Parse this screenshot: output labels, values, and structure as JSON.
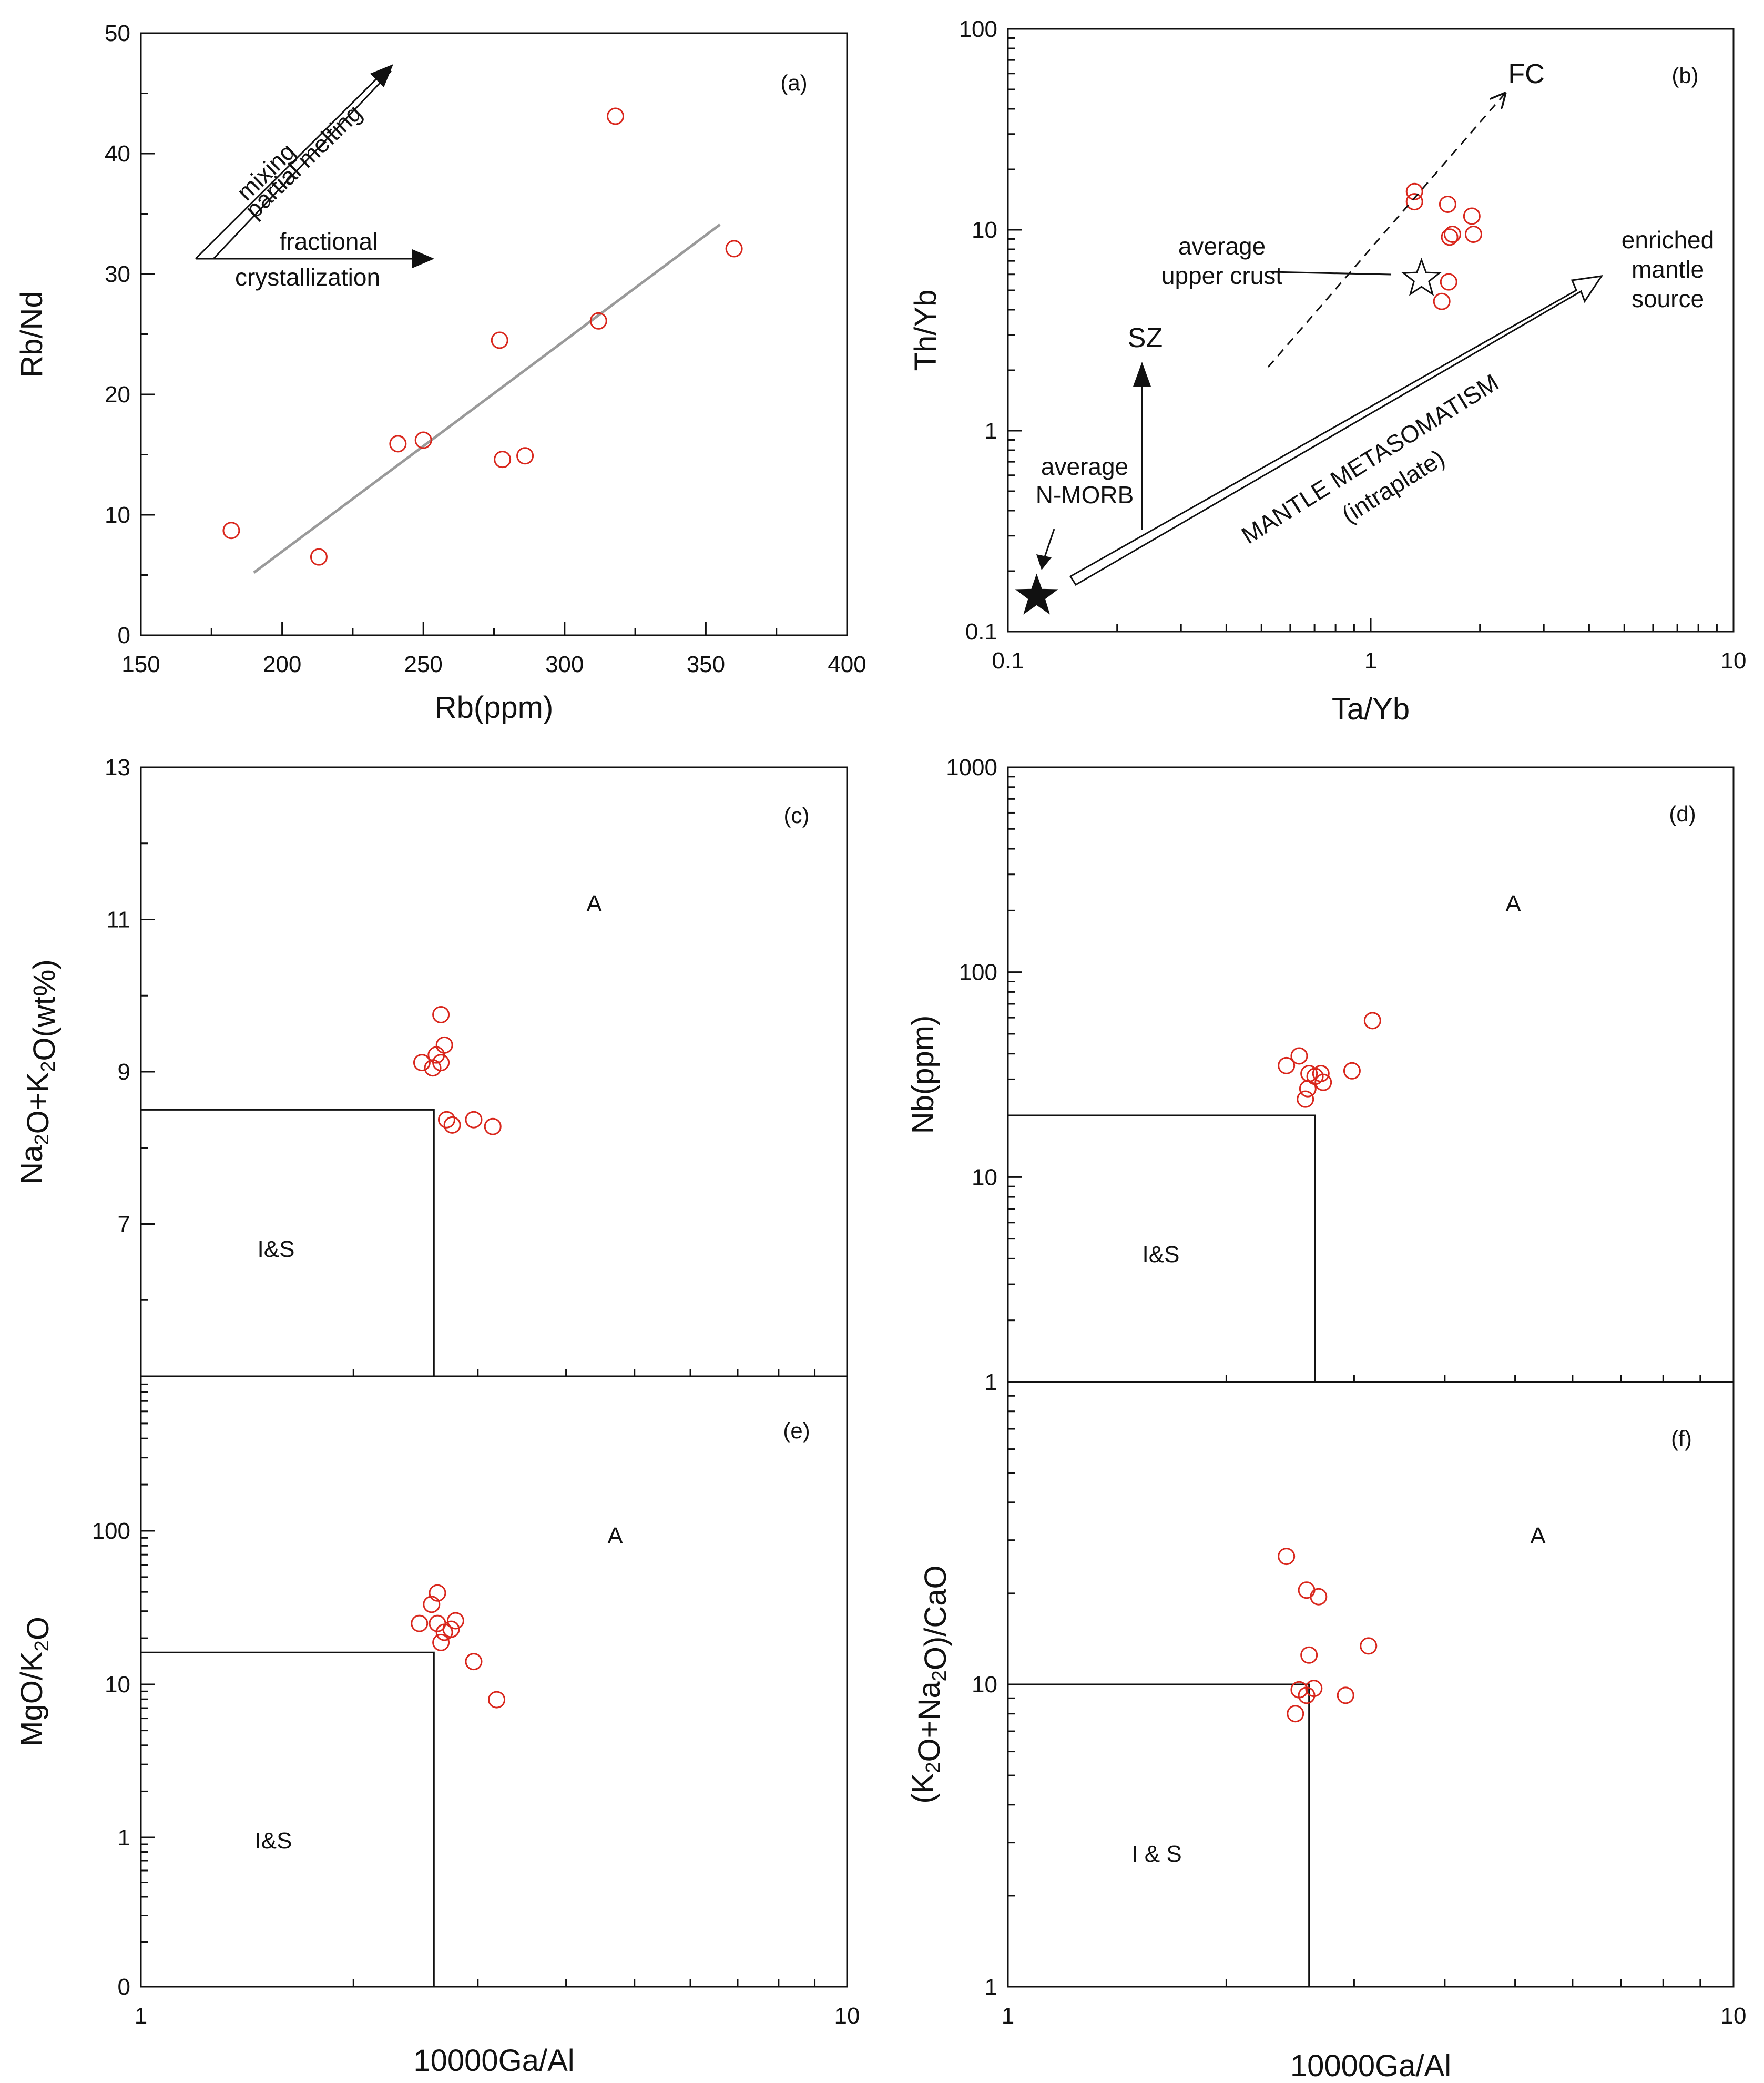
{
  "colors": {
    "points": "#d9261c",
    "axes": "#111111",
    "fit_line": "#9a9a9a"
  },
  "chart_data": [
    {
      "id": "a",
      "type": "scatter",
      "panel_label": "(a)",
      "xlabel": "Rb(ppm)",
      "ylabel": "Rb/Nd",
      "xlim": [
        150,
        400
      ],
      "ylim": [
        0,
        50
      ],
      "xscale": "linear",
      "yscale": "linear",
      "x_ticks": [
        150,
        200,
        250,
        300,
        350,
        400
      ],
      "y_ticks": [
        0,
        10,
        20,
        30,
        40,
        50
      ],
      "points": [
        {
          "x": 182,
          "y": 8.7
        },
        {
          "x": 213,
          "y": 6.5
        },
        {
          "x": 241,
          "y": 15.9
        },
        {
          "x": 250,
          "y": 16.2
        },
        {
          "x": 277,
          "y": 24.5
        },
        {
          "x": 278,
          "y": 14.6
        },
        {
          "x": 286,
          "y": 14.9
        },
        {
          "x": 312,
          "y": 26.1
        },
        {
          "x": 318,
          "y": 43.1
        },
        {
          "x": 360,
          "y": 32.1
        }
      ],
      "fit_line": [
        {
          "x": 190,
          "y": 5.2
        },
        {
          "x": 355,
          "y": 34.1
        }
      ],
      "annotations": {
        "mixing": "mixing",
        "partial_melting": "partial melting",
        "fractional": "fractional",
        "crystallization": "crystallization"
      }
    },
    {
      "id": "b",
      "type": "scatter",
      "panel_label": "(b)",
      "xlabel": "Ta/Yb",
      "ylabel": "Th/Yb",
      "xlim": [
        0.1,
        10
      ],
      "ylim": [
        0.1,
        100
      ],
      "xscale": "log",
      "yscale": "log",
      "x_ticks": [
        0.1,
        1,
        10
      ],
      "y_ticks": [
        0.1,
        1,
        10,
        100
      ],
      "x_tick_labels": [
        "0.1",
        "1",
        "10"
      ],
      "y_tick_labels": [
        "0.1",
        "1",
        "10",
        "100"
      ],
      "points": [
        {
          "x": 1.32,
          "y": 15.5
        },
        {
          "x": 1.32,
          "y": 13.8
        },
        {
          "x": 1.63,
          "y": 13.4
        },
        {
          "x": 1.9,
          "y": 11.7
        },
        {
          "x": 1.68,
          "y": 9.5
        },
        {
          "x": 1.65,
          "y": 9.2
        },
        {
          "x": 1.92,
          "y": 9.5
        },
        {
          "x": 1.64,
          "y": 5.5
        },
        {
          "x": 1.57,
          "y": 4.4
        }
      ],
      "average_upper_crust": {
        "x": 1.38,
        "y": 5.7
      },
      "average_n_morb": {
        "x": 0.12,
        "y": 0.15
      },
      "annotations": {
        "fc": "FC",
        "sz": "SZ",
        "upper_crust_1": "average",
        "upper_crust_2": "upper crust",
        "morb_1": "average",
        "morb_2": "N-MORB",
        "enriched_1": "enriched",
        "enriched_2": "mantle",
        "enriched_3": "source",
        "metasomatism_1": "MANTLE METASOMATISM",
        "metasomatism_2": "(intraplate)"
      }
    },
    {
      "id": "c",
      "type": "scatter",
      "panel_label": "(c)",
      "xlabel": "",
      "ylabel": "Na2O+K2O(wt%)",
      "xlim": [
        1,
        10
      ],
      "ylim": [
        5,
        13
      ],
      "xscale": "log",
      "yscale": "linear",
      "x_ticks": [
        1,
        10
      ],
      "y_ticks": [
        5,
        7,
        9,
        11,
        13
      ],
      "points": [
        {
          "x": 2.66,
          "y": 9.75
        },
        {
          "x": 2.69,
          "y": 9.35
        },
        {
          "x": 2.62,
          "y": 9.22
        },
        {
          "x": 2.5,
          "y": 9.12
        },
        {
          "x": 2.66,
          "y": 9.12
        },
        {
          "x": 2.59,
          "y": 9.05
        },
        {
          "x": 2.71,
          "y": 8.37
        },
        {
          "x": 2.76,
          "y": 8.3
        },
        {
          "x": 2.96,
          "y": 8.37
        },
        {
          "x": 3.15,
          "y": 8.28
        }
      ],
      "boundary": {
        "x": 2.6,
        "y": 8.5
      },
      "regions": {
        "a": "A",
        "is": "I&S"
      }
    },
    {
      "id": "d",
      "type": "scatter",
      "panel_label": "(d)",
      "xlabel": "",
      "ylabel": "Nb(ppm)",
      "xlim": [
        1,
        10
      ],
      "ylim": [
        1,
        1000
      ],
      "xscale": "log",
      "yscale": "log",
      "x_ticks": [
        1,
        10
      ],
      "y_ticks": [
        1,
        10,
        100,
        1000
      ],
      "y_tick_labels": [
        "1",
        "10",
        "100",
        "1000"
      ],
      "points": [
        {
          "x": 2.42,
          "y": 35
        },
        {
          "x": 2.52,
          "y": 39
        },
        {
          "x": 2.6,
          "y": 32
        },
        {
          "x": 2.65,
          "y": 31
        },
        {
          "x": 2.7,
          "y": 32
        },
        {
          "x": 2.72,
          "y": 29
        },
        {
          "x": 2.59,
          "y": 27
        },
        {
          "x": 2.57,
          "y": 24
        },
        {
          "x": 2.98,
          "y": 33
        },
        {
          "x": 3.18,
          "y": 58
        }
      ],
      "boundary": {
        "x": 2.65,
        "y": 20
      },
      "regions": {
        "a": "A",
        "is": "I&S"
      }
    },
    {
      "id": "e",
      "type": "scatter",
      "panel_label": "(e)",
      "xlabel": "10000Ga/Al",
      "ylabel": "MgO/K2O",
      "xlim": [
        1,
        10
      ],
      "ylim": [
        0.1,
        1000
      ],
      "xscale": "log",
      "yscale": "log",
      "x_ticks": [
        1,
        10
      ],
      "x_tick_labels": [
        "1",
        "10"
      ],
      "y_ticks": [
        0.1,
        1,
        10,
        100
      ],
      "y_tick_labels": [
        "0",
        "1",
        "10",
        "100"
      ],
      "points": [
        {
          "x": 2.63,
          "y": 38
        },
        {
          "x": 2.58,
          "y": 32
        },
        {
          "x": 2.48,
          "y": 24
        },
        {
          "x": 2.63,
          "y": 24
        },
        {
          "x": 2.79,
          "y": 25
        },
        {
          "x": 2.75,
          "y": 22
        },
        {
          "x": 2.69,
          "y": 21
        },
        {
          "x": 2.66,
          "y": 18
        },
        {
          "x": 2.96,
          "y": 13.5
        },
        {
          "x": 3.19,
          "y": 7.6
        }
      ],
      "boundary": {
        "x": 2.6,
        "y": 15.5
      },
      "regions": {
        "a": "A",
        "is": "I&S"
      }
    },
    {
      "id": "f",
      "type": "scatter",
      "panel_label": "(f)",
      "xlabel": "10000Ga/Al",
      "ylabel": "(K2O+Na2O)/CaO",
      "xlim": [
        1,
        10
      ],
      "ylim": [
        1,
        100
      ],
      "xscale": "log",
      "yscale": "log",
      "x_ticks": [
        1,
        10
      ],
      "x_tick_labels": [
        "1",
        "10"
      ],
      "y_ticks": [
        1,
        10
      ],
      "y_tick_labels": [
        "1",
        "10"
      ],
      "points": [
        {
          "x": 2.42,
          "y": 26.5
        },
        {
          "x": 2.58,
          "y": 20.5
        },
        {
          "x": 2.68,
          "y": 19.5
        },
        {
          "x": 2.6,
          "y": 12.5
        },
        {
          "x": 3.14,
          "y": 13.4
        },
        {
          "x": 2.52,
          "y": 9.6
        },
        {
          "x": 2.64,
          "y": 9.7
        },
        {
          "x": 2.58,
          "y": 9.2
        },
        {
          "x": 2.92,
          "y": 9.2
        },
        {
          "x": 2.49,
          "y": 8.0
        }
      ],
      "boundary": {
        "x": 2.6,
        "y": 10
      },
      "regions": {
        "a": "A",
        "is": "I & S"
      }
    }
  ]
}
